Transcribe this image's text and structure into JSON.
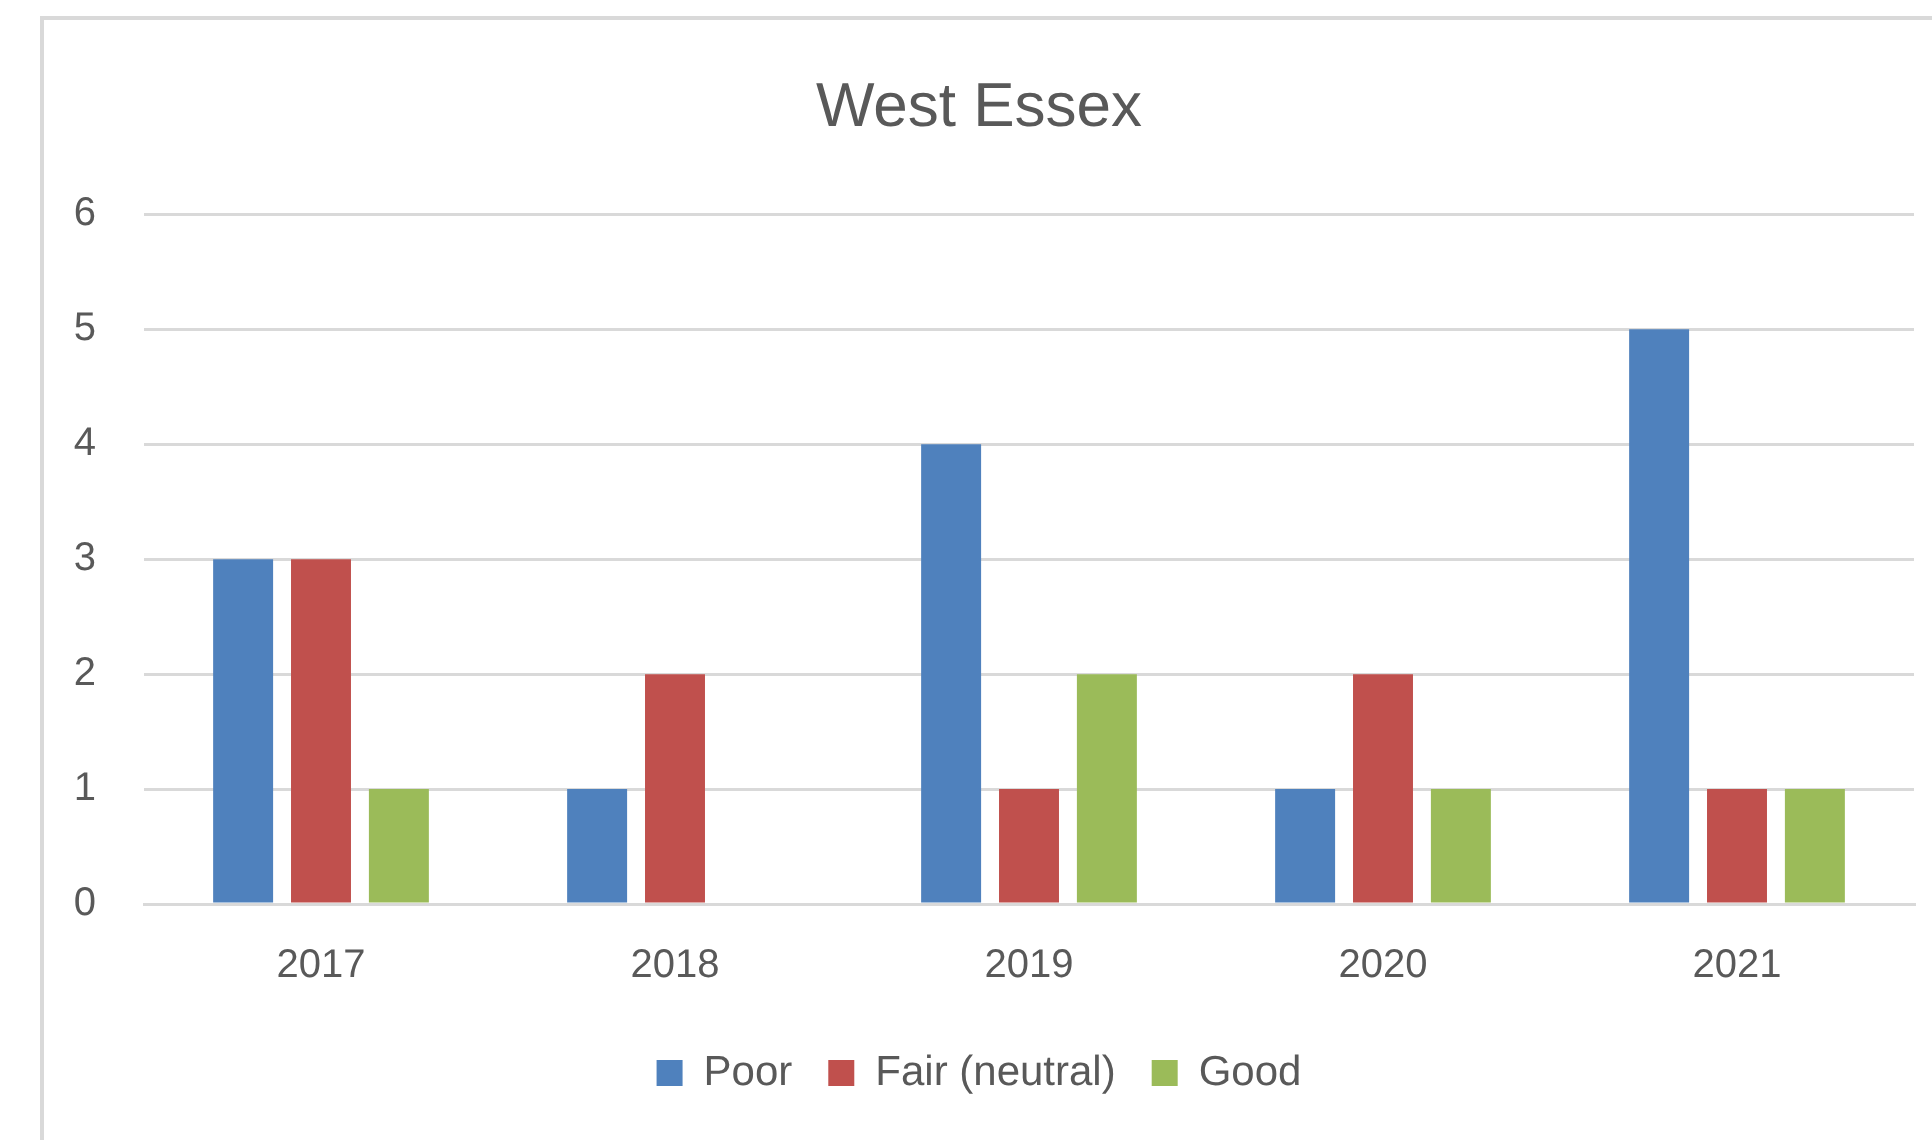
{
  "chart_data": {
    "type": "bar",
    "title": "West Essex",
    "categories": [
      "2017",
      "2018",
      "2019",
      "2020",
      "2021"
    ],
    "series": [
      {
        "name": "Poor",
        "color": "#4f81bd",
        "values": [
          3,
          1,
          4,
          1,
          5
        ]
      },
      {
        "name": "Fair (neutral)",
        "color": "#c0504d",
        "values": [
          3,
          2,
          1,
          2,
          1
        ]
      },
      {
        "name": "Good",
        "color": "#9bbb59",
        "values": [
          1,
          0,
          2,
          1,
          1
        ]
      }
    ],
    "ylim": [
      0,
      6
    ],
    "yticks": [
      0,
      1,
      2,
      3,
      4,
      5,
      6
    ],
    "grid": "y",
    "legend": "bottom"
  }
}
